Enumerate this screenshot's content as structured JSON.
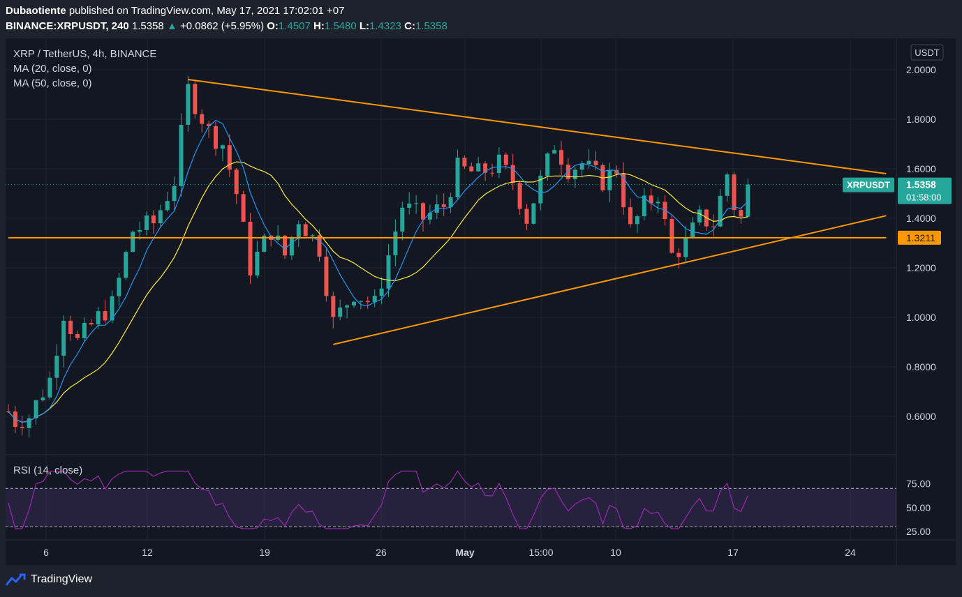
{
  "header": {
    "publisher": "Dubaotiente",
    "published_text": "published on TradingView.com, May 17, 2021 17:02:01 +07",
    "symbol": "BINANCE:XRPUSDT, 240",
    "last": "1.5358",
    "change_arrow": "▲",
    "change": "+0.0862 (+5.95%)",
    "o_label": "O:",
    "o": "1.4507",
    "h_label": "H:",
    "h": "1.5480",
    "l_label": "L:",
    "l": "1.4323",
    "c_label": "C:",
    "c": "1.5358"
  },
  "legend": {
    "title": "XRP / TetherUS, 4h, BINANCE",
    "ma20": "MA (20, close, 0)",
    "ma50": "MA (50, close, 0)",
    "rsi": "RSI (14, close)"
  },
  "axis": {
    "currency": "USDT",
    "price_ticks": [
      "2.0000",
      "1.8000",
      "1.6000",
      "1.4000",
      "1.2000",
      "1.0000",
      "0.8000",
      "0.6000"
    ],
    "rsi_ticks": [
      "75.00",
      "50.00",
      "25.00"
    ],
    "time_ticks": [
      "6",
      "12",
      "19",
      "26",
      "May",
      "15:00",
      "10",
      "17",
      "24"
    ]
  },
  "price_tag": {
    "symbol": "XRPUSDT",
    "price": "1.5358",
    "countdown": "01:58:00"
  },
  "level_tag": {
    "price": "1.3211"
  },
  "footer": {
    "brand": "TradingView"
  },
  "colors": {
    "background": "#1e222d",
    "up": "#26a69a",
    "down": "#ef5350",
    "ma20": "#2196f3",
    "ma50": "#ffeb3b",
    "trendline": "#ff9800",
    "rsi": "#9c27b0"
  },
  "chart_data": {
    "type": "candlestick",
    "symbol": "XRPUSDT",
    "interval": "4h",
    "ylim": [
      0.47,
      2.07
    ],
    "rsi_ylim": [
      20,
      100
    ],
    "close_path": [
      {
        "t": 0,
        "v": 0.62
      },
      {
        "t": 1,
        "v": 0.58
      },
      {
        "t": 3,
        "v": 0.6
      },
      {
        "t": 6,
        "v": 0.75
      },
      {
        "t": 8,
        "v": 1.02
      },
      {
        "t": 10,
        "v": 0.9
      },
      {
        "t": 13,
        "v": 1.0
      },
      {
        "t": 15,
        "v": 1.05
      },
      {
        "t": 18,
        "v": 1.35
      },
      {
        "t": 21,
        "v": 1.38
      },
      {
        "t": 24,
        "v": 1.55
      },
      {
        "t": 26,
        "v": 1.92
      },
      {
        "t": 29,
        "v": 1.75
      },
      {
        "t": 31,
        "v": 1.7
      },
      {
        "t": 33,
        "v": 1.5
      },
      {
        "t": 35,
        "v": 1.2
      },
      {
        "t": 38,
        "v": 1.35
      },
      {
        "t": 40,
        "v": 1.25
      },
      {
        "t": 42,
        "v": 1.4
      },
      {
        "t": 45,
        "v": 1.28
      },
      {
        "t": 47,
        "v": 0.98
      },
      {
        "t": 50,
        "v": 1.1
      },
      {
        "t": 53,
        "v": 1.05
      },
      {
        "t": 55,
        "v": 1.25
      },
      {
        "t": 57,
        "v": 1.45
      },
      {
        "t": 60,
        "v": 1.4
      },
      {
        "t": 63,
        "v": 1.45
      },
      {
        "t": 65,
        "v": 1.6
      },
      {
        "t": 68,
        "v": 1.58
      },
      {
        "t": 71,
        "v": 1.62
      },
      {
        "t": 73,
        "v": 1.55
      },
      {
        "t": 75,
        "v": 1.4
      },
      {
        "t": 77,
        "v": 1.55
      },
      {
        "t": 79,
        "v": 1.7
      },
      {
        "t": 81,
        "v": 1.6
      },
      {
        "t": 83,
        "v": 1.62
      },
      {
        "t": 86,
        "v": 1.55
      },
      {
        "t": 88,
        "v": 1.6
      },
      {
        "t": 90,
        "v": 1.35
      },
      {
        "t": 92,
        "v": 1.45
      },
      {
        "t": 94,
        "v": 1.5
      },
      {
        "t": 96,
        "v": 1.25
      },
      {
        "t": 98,
        "v": 1.3
      },
      {
        "t": 100,
        "v": 1.4
      },
      {
        "t": 102,
        "v": 1.38
      },
      {
        "t": 104,
        "v": 1.58
      },
      {
        "t": 105,
        "v": 1.45
      },
      {
        "t": 106,
        "v": 1.4
      },
      {
        "t": 107,
        "v": 1.5358
      }
    ],
    "trendlines": [
      {
        "name": "descending-resistance",
        "from": [
          26,
          1.96
        ],
        "to": [
          127,
          1.58
        ]
      },
      {
        "name": "ascending-support",
        "from": [
          47,
          0.89
        ],
        "to": [
          127,
          1.41
        ]
      },
      {
        "name": "horizontal-level",
        "from": [
          0,
          1.3211
        ],
        "to": [
          127,
          1.3211
        ]
      }
    ],
    "last_price": 1.5358,
    "level": 1.3211,
    "rsi_bands": [
      70,
      30
    ]
  }
}
